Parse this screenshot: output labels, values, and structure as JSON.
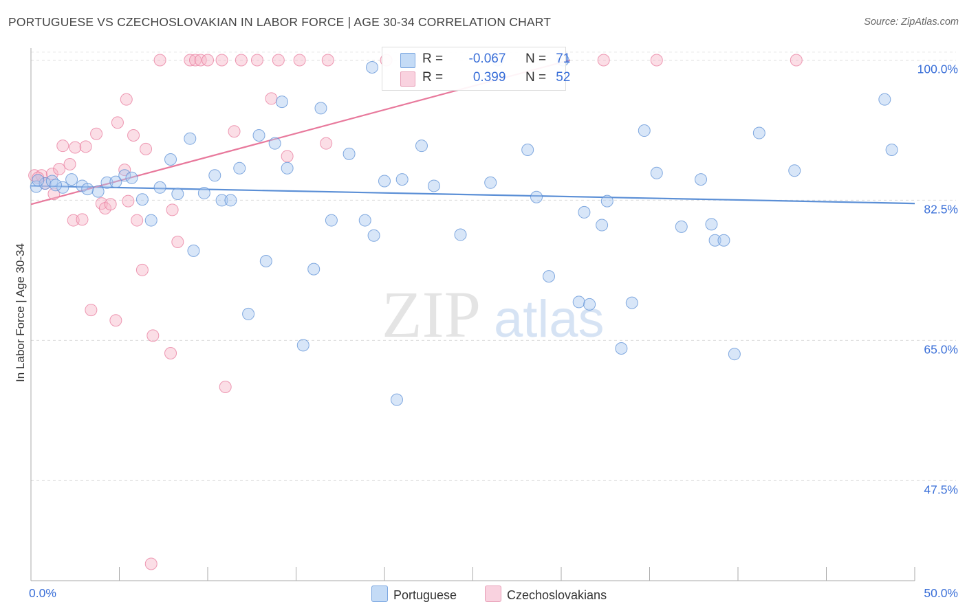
{
  "title": "PORTUGUESE VS CZECHOSLOVAKIAN IN LABOR FORCE | AGE 30-34 CORRELATION CHART",
  "source": "Source: ZipAtlas.com",
  "watermark": {
    "zip": "ZIP",
    "atlas": "atlas"
  },
  "legend": {
    "r_label": "R =",
    "n_label": "N =",
    "rows": [
      {
        "r": "-0.067",
        "n": "71",
        "color": "#a8c8f0"
      },
      {
        "r": "0.399",
        "n": "52",
        "color": "#f7b6c8"
      }
    ]
  },
  "chart_data": {
    "type": "scatter",
    "title": "PORTUGUESE VS CZECHOSLOVAKIAN IN LABOR FORCE | AGE 30-34 CORRELATION CHART",
    "xlabel": "",
    "ylabel": "In Labor Force | Age 30-34",
    "xlim": [
      0,
      50
    ],
    "ylim": [
      35,
      101.5
    ],
    "x_tick_labels": [
      "0.0%",
      "50.0%"
    ],
    "y_ticks": [
      47.5,
      65.0,
      82.5,
      100.0
    ],
    "y_tick_labels": [
      "47.5%",
      "65.0%",
      "82.5%",
      "100.0%"
    ],
    "grid": "horizontal dashed",
    "legend_position": "top-center",
    "series": [
      {
        "name": "Portuguese",
        "color": "#5b8fd6",
        "fill": "#a8c8f0",
        "trend": {
          "x": [
            0,
            50
          ],
          "y": [
            84.3,
            82.1
          ]
        },
        "points": [
          [
            0.3,
            84.2
          ],
          [
            0.8,
            84.6
          ],
          [
            1.2,
            84.9
          ],
          [
            1.8,
            84.1
          ],
          [
            2.3,
            85.1
          ],
          [
            2.9,
            84.3
          ],
          [
            3.8,
            83.6
          ],
          [
            4.3,
            84.7
          ],
          [
            4.8,
            84.8
          ],
          [
            5.3,
            85.6
          ],
          [
            5.7,
            85.3
          ],
          [
            6.3,
            82.6
          ],
          [
            6.8,
            80.0
          ],
          [
            7.3,
            84.1
          ],
          [
            7.9,
            87.6
          ],
          [
            8.3,
            83.3
          ],
          [
            9.0,
            90.2
          ],
          [
            9.2,
            76.2
          ],
          [
            9.8,
            83.4
          ],
          [
            10.4,
            85.6
          ],
          [
            10.8,
            82.5
          ],
          [
            11.3,
            82.5
          ],
          [
            11.8,
            86.5
          ],
          [
            12.3,
            68.3
          ],
          [
            12.9,
            90.6
          ],
          [
            13.3,
            74.9
          ],
          [
            13.8,
            89.6
          ],
          [
            14.2,
            94.8
          ],
          [
            14.5,
            86.5
          ],
          [
            15.4,
            64.4
          ],
          [
            16.0,
            73.9
          ],
          [
            16.4,
            94.0
          ],
          [
            17.0,
            80.0
          ],
          [
            18.0,
            88.3
          ],
          [
            18.9,
            80.0
          ],
          [
            19.3,
            99.1
          ],
          [
            19.4,
            78.1
          ],
          [
            20.0,
            84.9
          ],
          [
            20.7,
            57.6
          ],
          [
            21.0,
            85.1
          ],
          [
            22.1,
            89.3
          ],
          [
            22.8,
            84.3
          ],
          [
            24.3,
            78.2
          ],
          [
            26.0,
            84.7
          ],
          [
            26.4,
            100.0
          ],
          [
            28.1,
            88.8
          ],
          [
            28.6,
            82.9
          ],
          [
            29.3,
            73.0
          ],
          [
            30.1,
            100.0
          ],
          [
            31.0,
            69.8
          ],
          [
            31.3,
            81.0
          ],
          [
            31.6,
            69.5
          ],
          [
            32.3,
            79.4
          ],
          [
            32.6,
            82.4
          ],
          [
            33.4,
            64.0
          ],
          [
            34.0,
            69.7
          ],
          [
            34.7,
            91.2
          ],
          [
            35.4,
            85.9
          ],
          [
            36.8,
            79.2
          ],
          [
            37.9,
            85.1
          ],
          [
            38.5,
            79.5
          ],
          [
            38.7,
            77.5
          ],
          [
            39.2,
            77.5
          ],
          [
            39.8,
            63.3
          ],
          [
            41.2,
            90.9
          ],
          [
            43.2,
            86.2
          ],
          [
            48.3,
            95.1
          ],
          [
            48.7,
            88.8
          ],
          [
            0.4,
            85.0
          ],
          [
            1.4,
            84.4
          ],
          [
            3.2,
            83.9
          ]
        ]
      },
      {
        "name": "Czechoslovakians",
        "color": "#e8799c",
        "fill": "#f7b6c8",
        "trend": {
          "x": [
            0,
            30.5
          ],
          "y": [
            82.0,
            100.0
          ]
        },
        "points": [
          [
            0.2,
            85.6
          ],
          [
            0.6,
            85.6
          ],
          [
            0.8,
            84.6
          ],
          [
            1.2,
            85.8
          ],
          [
            1.3,
            83.3
          ],
          [
            1.6,
            86.4
          ],
          [
            1.8,
            89.3
          ],
          [
            2.2,
            87.0
          ],
          [
            2.4,
            80.0
          ],
          [
            2.5,
            89.1
          ],
          [
            2.9,
            80.1
          ],
          [
            3.1,
            89.2
          ],
          [
            3.4,
            68.8
          ],
          [
            3.7,
            90.8
          ],
          [
            4.0,
            82.1
          ],
          [
            4.2,
            81.5
          ],
          [
            4.5,
            82.0
          ],
          [
            4.8,
            67.5
          ],
          [
            4.9,
            92.2
          ],
          [
            5.3,
            86.3
          ],
          [
            5.4,
            95.1
          ],
          [
            5.5,
            82.4
          ],
          [
            5.8,
            90.6
          ],
          [
            6.0,
            80.0
          ],
          [
            6.3,
            73.8
          ],
          [
            6.5,
            88.9
          ],
          [
            6.8,
            37.1
          ],
          [
            6.9,
            65.6
          ],
          [
            7.3,
            100.0
          ],
          [
            7.9,
            63.4
          ],
          [
            8.0,
            81.3
          ],
          [
            8.3,
            77.3
          ],
          [
            9.0,
            100.0
          ],
          [
            9.3,
            100.0
          ],
          [
            9.6,
            100.0
          ],
          [
            10.0,
            100.0
          ],
          [
            10.8,
            100.0
          ],
          [
            11.0,
            59.2
          ],
          [
            11.5,
            91.1
          ],
          [
            11.9,
            100.0
          ],
          [
            12.8,
            100.0
          ],
          [
            13.6,
            95.2
          ],
          [
            14.0,
            100.0
          ],
          [
            14.5,
            88.0
          ],
          [
            15.2,
            100.0
          ],
          [
            16.7,
            89.6
          ],
          [
            16.8,
            100.0
          ],
          [
            20.1,
            100.0
          ],
          [
            32.4,
            100.0
          ],
          [
            35.4,
            100.0
          ],
          [
            43.3,
            100.0
          ],
          [
            0.4,
            85.3
          ]
        ]
      }
    ]
  },
  "bottom_legend": [
    {
      "label": "Portuguese",
      "color": "#a8c8f0",
      "border": "#7aa6e0"
    },
    {
      "label": "Czechoslovakians",
      "color": "#f7cfdc",
      "border": "#e8a0b8"
    }
  ]
}
